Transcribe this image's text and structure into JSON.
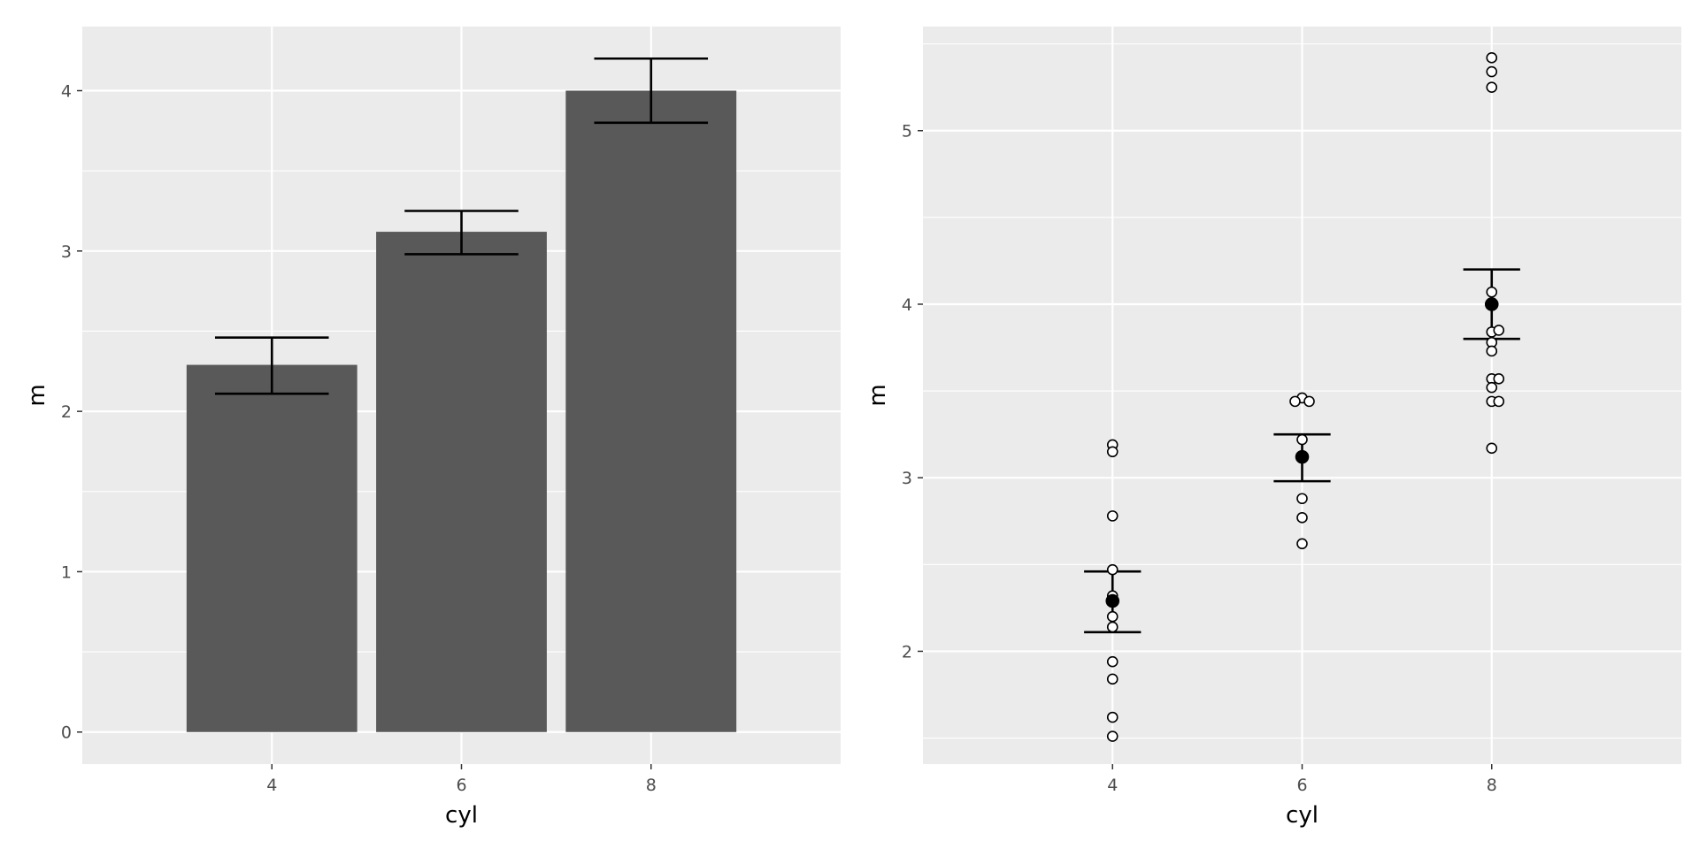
{
  "chart_data": [
    {
      "type": "bar",
      "xlabel": "cyl",
      "ylabel": "m",
      "categories": [
        "4",
        "6",
        "8"
      ],
      "values": [
        2.29,
        3.12,
        4.0
      ],
      "error_bars": [
        {
          "low": 2.11,
          "high": 2.46
        },
        {
          "low": 2.98,
          "high": 3.25
        },
        {
          "low": 3.8,
          "high": 4.2
        }
      ],
      "ylim": [
        -0.2,
        4.4
      ],
      "yticks": [
        "0",
        "1",
        "2",
        "3",
        "4"
      ],
      "grid": true,
      "colors": {
        "bar": "#595959",
        "panel": "#ebebeb",
        "grid": "#ffffff"
      }
    },
    {
      "type": "scatter",
      "xlabel": "cyl",
      "ylabel": "m",
      "categories": [
        "4",
        "6",
        "8"
      ],
      "points": [
        {
          "x": "4",
          "y": 3.19
        },
        {
          "x": "4",
          "y": 3.15
        },
        {
          "x": "4",
          "y": 2.78
        },
        {
          "x": "4",
          "y": 2.47
        },
        {
          "x": "4",
          "y": 2.32
        },
        {
          "x": "4",
          "y": 2.2
        },
        {
          "x": "4",
          "y": 2.14
        },
        {
          "x": "4",
          "y": 1.94
        },
        {
          "x": "4",
          "y": 1.84
        },
        {
          "x": "4",
          "y": 1.62
        },
        {
          "x": "4",
          "y": 1.51
        },
        {
          "x": "6",
          "y": 3.46
        },
        {
          "x": "6",
          "y": 3.44
        },
        {
          "x": "6",
          "y": 3.44
        },
        {
          "x": "6",
          "y": 3.22
        },
        {
          "x": "6",
          "y": 2.88
        },
        {
          "x": "6",
          "y": 2.77
        },
        {
          "x": "6",
          "y": 2.62
        },
        {
          "x": "8",
          "y": 5.42
        },
        {
          "x": "8",
          "y": 5.34
        },
        {
          "x": "8",
          "y": 5.25
        },
        {
          "x": "8",
          "y": 4.07
        },
        {
          "x": "8",
          "y": 3.84
        },
        {
          "x": "8",
          "y": 3.85
        },
        {
          "x": "8",
          "y": 3.78
        },
        {
          "x": "8",
          "y": 3.73
        },
        {
          "x": "8",
          "y": 3.57
        },
        {
          "x": "8",
          "y": 3.57
        },
        {
          "x": "8",
          "y": 3.52
        },
        {
          "x": "8",
          "y": 3.44
        },
        {
          "x": "8",
          "y": 3.44
        },
        {
          "x": "8",
          "y": 3.17
        }
      ],
      "means": [
        {
          "x": "4",
          "mean": 2.29,
          "low": 2.11,
          "high": 2.46
        },
        {
          "x": "6",
          "mean": 3.12,
          "low": 2.98,
          "high": 3.25
        },
        {
          "x": "8",
          "mean": 4.0,
          "low": 3.8,
          "high": 4.2
        }
      ],
      "ylim": [
        1.35,
        5.6
      ],
      "yticks": [
        "2",
        "3",
        "4",
        "5"
      ],
      "grid": true,
      "colors": {
        "point_fill": "#ffffff",
        "mean_fill": "#000000",
        "panel": "#ebebeb",
        "grid": "#ffffff"
      }
    }
  ]
}
